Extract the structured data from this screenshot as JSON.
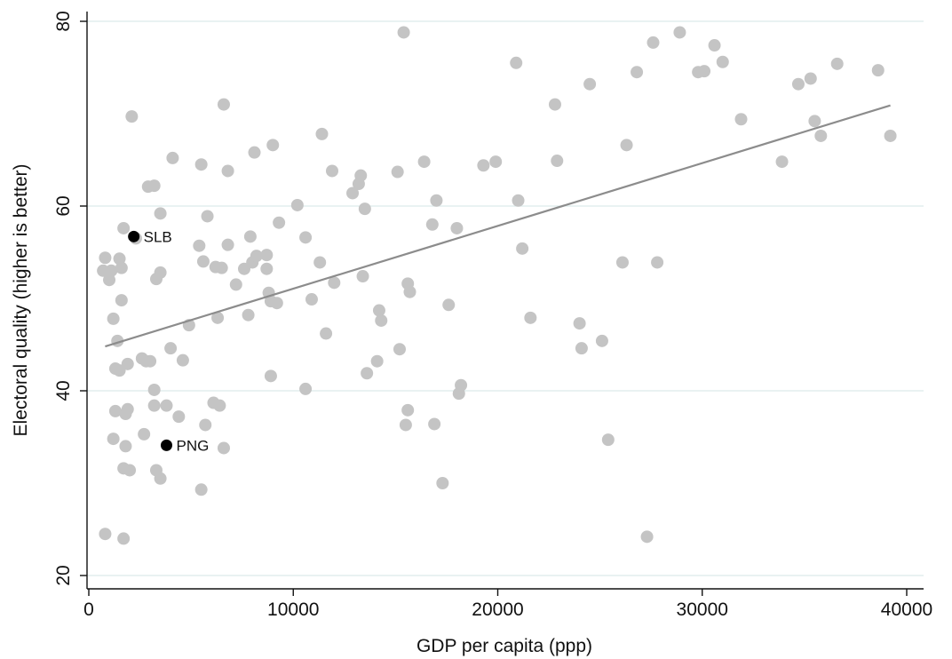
{
  "chart_data": {
    "type": "scatter",
    "title": "",
    "xlabel": "GDP per capita (ppp)",
    "ylabel": "Electoral quality (higher is better)",
    "xlim": [
      0,
      40000
    ],
    "ylim": [
      20,
      80
    ],
    "xticks": [
      0,
      10000,
      20000,
      30000,
      40000
    ],
    "yticks": [
      20,
      40,
      60,
      80
    ],
    "grid": "horizontal",
    "legend": "none",
    "colors": {
      "points": "#c4c4c4",
      "highlight": "#000000",
      "fit_line": "#8c8c8c",
      "grid": "#dceaea",
      "axis": "#111111"
    },
    "fit_line": {
      "x": [
        800,
        39200
      ],
      "y": [
        44.8,
        70.9
      ]
    },
    "highlighted": [
      {
        "label": "SLB",
        "x": 2200,
        "y": 56.7
      },
      {
        "label": "PNG",
        "x": 3800,
        "y": 34.1
      }
    ],
    "points": [
      [
        800,
        54.4
      ],
      [
        700,
        53.0
      ],
      [
        1000,
        52.0
      ],
      [
        1100,
        53.0
      ],
      [
        1500,
        54.3
      ],
      [
        1600,
        53.3
      ],
      [
        1700,
        57.6
      ],
      [
        2100,
        69.7
      ],
      [
        2300,
        56.5
      ],
      [
        1200,
        47.8
      ],
      [
        1400,
        45.4
      ],
      [
        1600,
        49.8
      ],
      [
        1300,
        42.4
      ],
      [
        1500,
        42.2
      ],
      [
        1900,
        42.9
      ],
      [
        1300,
        37.8
      ],
      [
        1800,
        37.5
      ],
      [
        1900,
        38.0
      ],
      [
        1800,
        34.0
      ],
      [
        1200,
        34.8
      ],
      [
        1700,
        31.6
      ],
      [
        2000,
        31.4
      ],
      [
        800,
        24.5
      ],
      [
        1700,
        24.0
      ],
      [
        2800,
        43.2
      ],
      [
        2600,
        43.5
      ],
      [
        3000,
        43.2
      ],
      [
        2900,
        62.1
      ],
      [
        3200,
        62.2
      ],
      [
        3500,
        59.2
      ],
      [
        3500,
        52.8
      ],
      [
        3300,
        52.1
      ],
      [
        3200,
        40.1
      ],
      [
        3200,
        38.4
      ],
      [
        3800,
        38.4
      ],
      [
        2700,
        35.3
      ],
      [
        3300,
        31.4
      ],
      [
        3500,
        30.5
      ],
      [
        4000,
        44.6
      ],
      [
        4100,
        65.2
      ],
      [
        4400,
        37.2
      ],
      [
        4600,
        43.3
      ],
      [
        4900,
        47.1
      ],
      [
        5400,
        55.7
      ],
      [
        5500,
        64.5
      ],
      [
        5600,
        54.0
      ],
      [
        5800,
        58.9
      ],
      [
        5500,
        29.3
      ],
      [
        5700,
        36.3
      ],
      [
        6200,
        53.4
      ],
      [
        6100,
        38.7
      ],
      [
        6400,
        38.4
      ],
      [
        6300,
        47.9
      ],
      [
        6500,
        53.3
      ],
      [
        6600,
        33.8
      ],
      [
        6800,
        63.8
      ],
      [
        6800,
        55.8
      ],
      [
        6600,
        71.0
      ],
      [
        7200,
        51.5
      ],
      [
        7600,
        53.2
      ],
      [
        7800,
        48.2
      ],
      [
        7900,
        56.7
      ],
      [
        8000,
        53.9
      ],
      [
        8100,
        65.8
      ],
      [
        8200,
        54.6
      ],
      [
        8700,
        54.7
      ],
      [
        8800,
        50.6
      ],
      [
        8700,
        53.2
      ],
      [
        8900,
        49.7
      ],
      [
        8900,
        41.6
      ],
      [
        9000,
        66.6
      ],
      [
        9200,
        49.5
      ],
      [
        9300,
        58.2
      ],
      [
        10200,
        60.1
      ],
      [
        10600,
        56.6
      ],
      [
        10900,
        49.9
      ],
      [
        10600,
        40.2
      ],
      [
        11300,
        53.9
      ],
      [
        11400,
        67.8
      ],
      [
        11600,
        46.2
      ],
      [
        11900,
        63.8
      ],
      [
        12000,
        51.7
      ],
      [
        12900,
        61.4
      ],
      [
        13200,
        62.4
      ],
      [
        13300,
        63.3
      ],
      [
        13400,
        52.4
      ],
      [
        13500,
        59.7
      ],
      [
        13600,
        41.9
      ],
      [
        14100,
        43.2
      ],
      [
        14200,
        48.7
      ],
      [
        14300,
        47.6
      ],
      [
        15100,
        63.7
      ],
      [
        15200,
        44.5
      ],
      [
        15400,
        78.8
      ],
      [
        15600,
        51.6
      ],
      [
        15700,
        50.7
      ],
      [
        15600,
        37.9
      ],
      [
        15500,
        36.3
      ],
      [
        16400,
        64.8
      ],
      [
        16800,
        58.0
      ],
      [
        17000,
        60.6
      ],
      [
        16900,
        36.4
      ],
      [
        17300,
        30.0
      ],
      [
        17600,
        49.3
      ],
      [
        18000,
        57.6
      ],
      [
        18200,
        40.6
      ],
      [
        18100,
        39.7
      ],
      [
        19300,
        64.4
      ],
      [
        19900,
        64.8
      ],
      [
        20900,
        75.5
      ],
      [
        21000,
        60.6
      ],
      [
        21200,
        55.4
      ],
      [
        21600,
        47.9
      ],
      [
        22800,
        71.0
      ],
      [
        22900,
        64.9
      ],
      [
        24000,
        47.3
      ],
      [
        24100,
        44.6
      ],
      [
        24500,
        73.2
      ],
      [
        25100,
        45.4
      ],
      [
        25400,
        34.7
      ],
      [
        26100,
        53.9
      ],
      [
        26300,
        66.6
      ],
      [
        26800,
        74.5
      ],
      [
        27300,
        24.2
      ],
      [
        27600,
        77.7
      ],
      [
        27800,
        53.9
      ],
      [
        28900,
        78.8
      ],
      [
        29800,
        74.5
      ],
      [
        30100,
        74.6
      ],
      [
        30600,
        77.4
      ],
      [
        31000,
        75.6
      ],
      [
        31900,
        69.4
      ],
      [
        33900,
        64.8
      ],
      [
        34700,
        73.2
      ],
      [
        35300,
        73.8
      ],
      [
        35500,
        69.2
      ],
      [
        35800,
        67.6
      ],
      [
        36600,
        75.4
      ],
      [
        38600,
        74.7
      ],
      [
        39200,
        67.6
      ]
    ]
  }
}
